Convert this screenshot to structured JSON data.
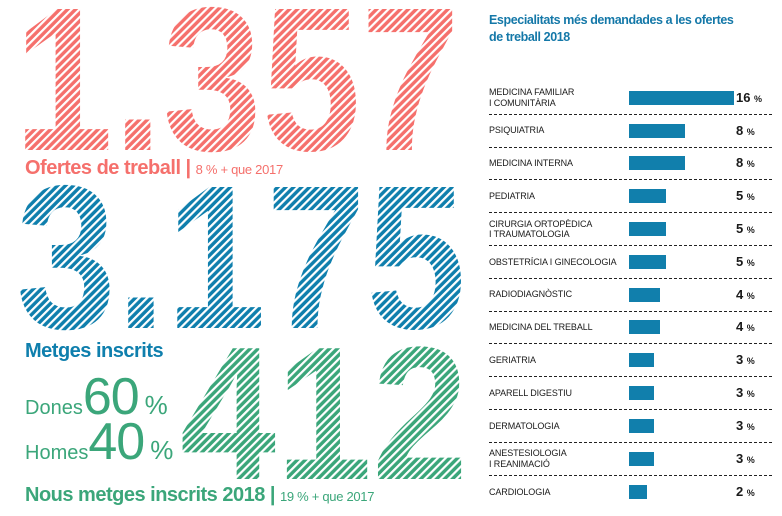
{
  "colors": {
    "red": "#F5706C",
    "blue": "#0F7FAD",
    "green": "#3BA67A",
    "title_blue": "#1478A8",
    "bar_blue": "#117FAC",
    "text": "#1A1A1A"
  },
  "left": {
    "offers": {
      "number": "1.357",
      "label": "Ofertes de treball |",
      "sublabel": "8 % + que 2017"
    },
    "registered": {
      "number": "3.175",
      "label": "Metges inscrits"
    },
    "gender": {
      "dones_label": "Dones",
      "dones_value": "60",
      "dones_unit": "%",
      "homes_label": "Homes",
      "homes_value": "40",
      "homes_unit": "%"
    },
    "new_doctors": {
      "number": "412",
      "label": "Nous metges inscrits 2018 |",
      "sublabel": "19 % + que 2017"
    }
  },
  "chart_data": {
    "type": "bar",
    "orientation": "horizontal",
    "title": "Especialitats més demandades a les ofertes de treball 2018",
    "title_lines": [
      "Especialitats més demandades a les ofertes",
      "de treball 2018"
    ],
    "unit": "%",
    "categories": [
      "MEDICINA FAMILIAR\nI COMUNITÀRIA",
      "PSIQUIATRIA",
      "MEDICINA INTERNA",
      "PEDIATRIA",
      "CIRURGIA ORTOPÈDICA\nI TRAUMATOLOGIA",
      "OBSTETRÍCIA I GINECOLOGIA",
      "RADIODIAGNÒSTIC",
      "MEDICINA DEL TREBALL",
      "GERIATRIA",
      "APARELL DIGESTIU",
      "DERMATOLOGIA",
      "ANESTESIOLOGIA\nI REANIMACIÓ",
      "CARDIOLOGIA"
    ],
    "values": [
      16,
      8,
      8,
      5,
      5,
      5,
      4,
      4,
      3,
      3,
      3,
      3,
      2
    ],
    "xlim": [
      0,
      16
    ],
    "grid": false,
    "legend": false,
    "value_labels": true,
    "bar_color": "#117FAC"
  }
}
